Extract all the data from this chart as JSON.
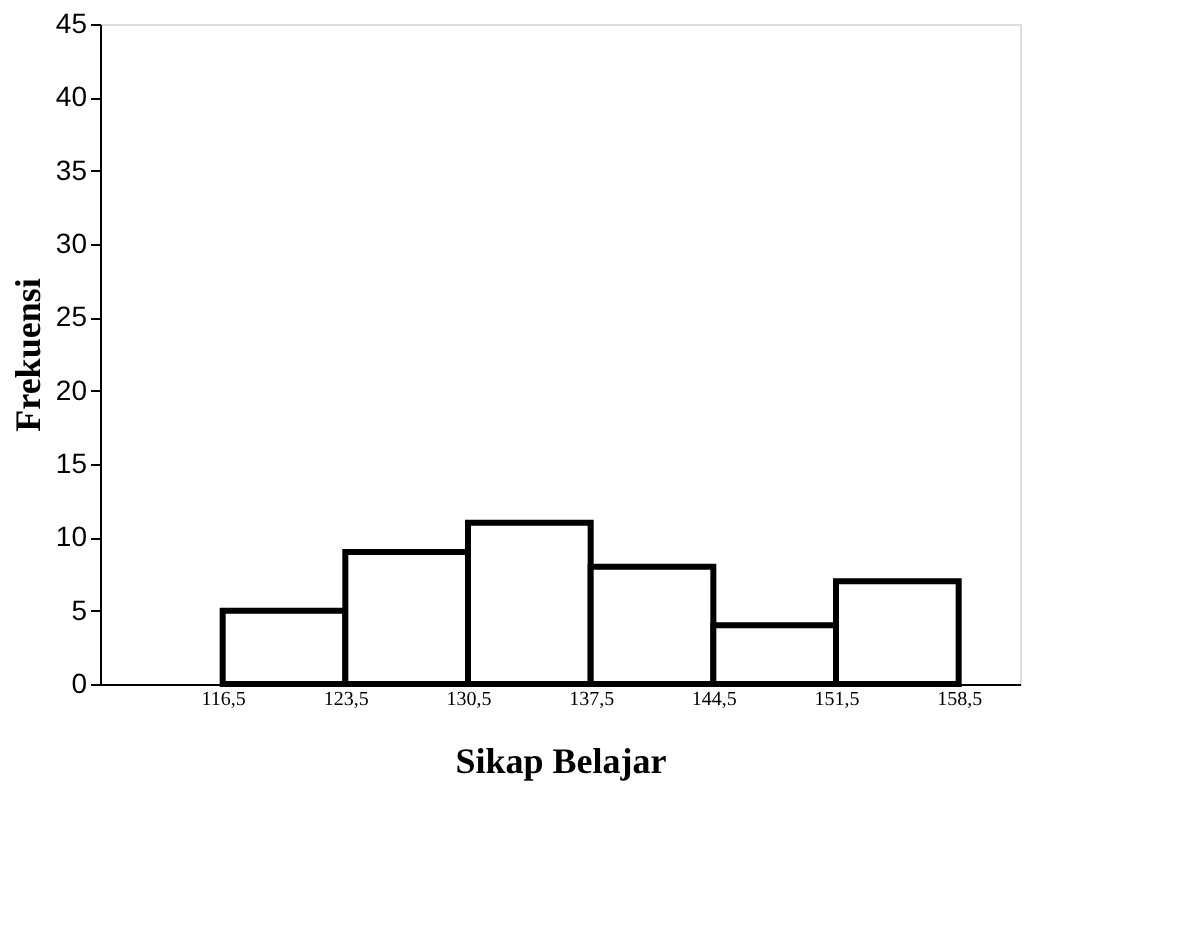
{
  "chart_data": {
    "type": "histogram",
    "xlabel": "Sikap Belajar",
    "ylabel": "Frekuensi",
    "bins": [
      116.5,
      123.5,
      130.5,
      137.5,
      144.5,
      151.5,
      158.5
    ],
    "values": [
      5,
      9,
      11,
      8,
      4,
      7
    ],
    "color": "#ffffff",
    "xlim": [
      109.5,
      162
    ],
    "xticks": [
      {
        "value": 116.5,
        "label": "116,5"
      },
      {
        "value": 123.5,
        "label": "123,5"
      },
      {
        "value": 130.5,
        "label": "130,5"
      },
      {
        "value": 137.5,
        "label": "137,5"
      },
      {
        "value": 144.5,
        "label": "144,5"
      },
      {
        "value": 151.5,
        "label": "151,5"
      },
      {
        "value": 158.5,
        "label": "158,5"
      }
    ],
    "ylim": [
      0,
      45
    ],
    "yticks": [
      0,
      5,
      10,
      15,
      20,
      25,
      30,
      35,
      40,
      45
    ],
    "grid": false
  }
}
